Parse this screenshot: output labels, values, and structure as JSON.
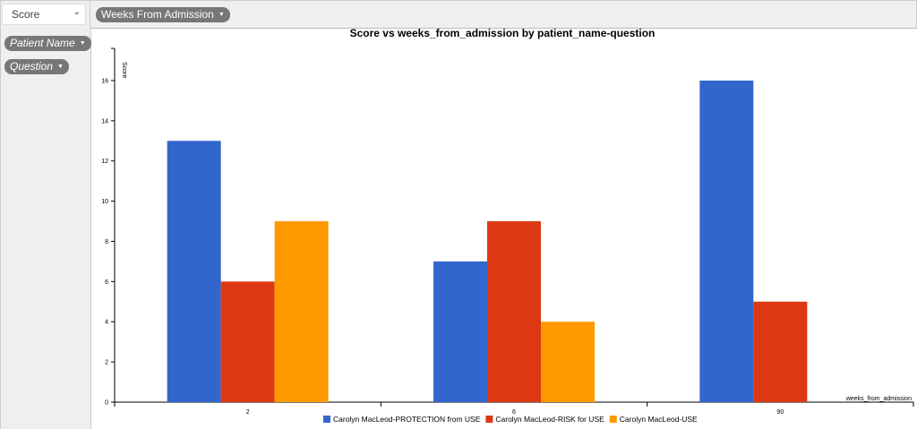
{
  "controls": {
    "measure_select": "Score",
    "column_pill": "Weeks From Admission",
    "row_pills": [
      "Patient Name",
      "Question"
    ]
  },
  "chart_data": {
    "type": "bar",
    "title": "Score vs weeks_from_admission by patient_name-question",
    "xlabel": "weeks_from_admission",
    "ylabel": "Score",
    "categories": [
      "2",
      "6",
      "90"
    ],
    "yticks": [
      "0",
      "2",
      "4",
      "6",
      "8",
      "10",
      "12",
      "14",
      "16"
    ],
    "ylim": [
      0,
      17.6
    ],
    "legend_position": "bottom",
    "series": [
      {
        "name": "Carolyn MacLeod-PROTECTION from USE",
        "color": "#3366cc",
        "values": [
          13,
          7,
          16
        ]
      },
      {
        "name": "Carolyn MacLeod-RISK for USE",
        "color": "#dc3912",
        "values": [
          6,
          9,
          5
        ]
      },
      {
        "name": "Carolyn MacLeod-USE",
        "color": "#ff9900",
        "values": [
          9,
          4,
          null
        ]
      }
    ]
  }
}
